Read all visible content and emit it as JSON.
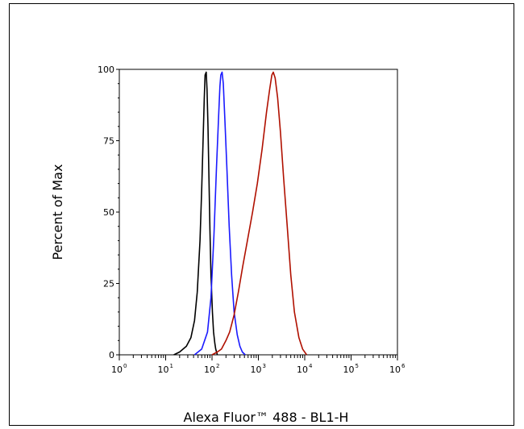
{
  "chart_data": {
    "type": "line",
    "xlabel": "Alexa Fluor™ 488 - BL1-H",
    "ylabel": "Percent of Max",
    "xscale": "log",
    "xlim": [
      1,
      1000000
    ],
    "ylim": [
      0,
      100
    ],
    "yticks": [
      "0",
      "25",
      "50",
      "75",
      "100"
    ],
    "xticks": [
      {
        "base": "10",
        "exp": "0"
      },
      {
        "base": "10",
        "exp": "1"
      },
      {
        "base": "10",
        "exp": "2"
      },
      {
        "base": "10",
        "exp": "3"
      },
      {
        "base": "10",
        "exp": "4"
      },
      {
        "base": "10",
        "exp": "5"
      },
      {
        "base": "10",
        "exp": "6"
      }
    ],
    "grid": false,
    "legend": false,
    "series": [
      {
        "color": "#000000",
        "x": [
          15,
          20,
          28,
          35,
          42,
          48,
          55,
          60,
          65,
          68,
          71,
          75,
          78,
          82,
          86,
          90,
          95,
          102,
          108,
          115,
          120,
          130
        ],
        "y": [
          0,
          1,
          3,
          6,
          12,
          22,
          40,
          58,
          78,
          90,
          98,
          99,
          93,
          80,
          62,
          44,
          28,
          15,
          8,
          4,
          2,
          0
        ]
      },
      {
        "color": "#1a1aff",
        "x": [
          42,
          60,
          80,
          95,
          110,
          125,
          140,
          148,
          155,
          165,
          175,
          190,
          210,
          235,
          265,
          300,
          350,
          400,
          450,
          520
        ],
        "y": [
          0,
          2,
          8,
          20,
          42,
          66,
          85,
          94,
          98,
          99,
          95,
          82,
          65,
          45,
          28,
          15,
          7,
          3,
          1,
          0
        ]
      },
      {
        "color": "#b01000",
        "x": [
          100,
          130,
          160,
          200,
          240,
          300,
          370,
          460,
          580,
          750,
          950,
          1200,
          1500,
          1750,
          1950,
          2100,
          2300,
          2600,
          3000,
          3500,
          4200,
          5000,
          6000,
          7500,
          9000,
          11000
        ],
        "y": [
          0,
          1,
          2,
          5,
          8,
          14,
          22,
          31,
          40,
          50,
          60,
          72,
          85,
          93,
          98,
          99,
          97,
          90,
          78,
          62,
          45,
          28,
          15,
          6,
          2,
          0
        ]
      }
    ]
  }
}
